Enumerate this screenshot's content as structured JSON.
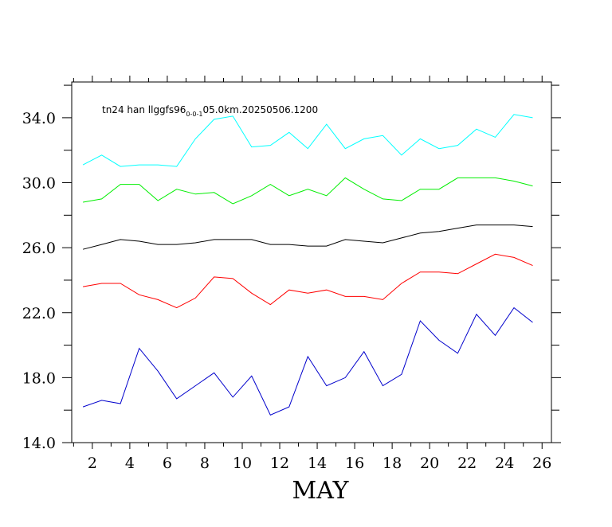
{
  "chart_data": {
    "type": "line",
    "title": "tn24 han llggfs96",
    "title_subscript": "0-0-1",
    "title_suffix": "05.0km.20250506.1200",
    "xlabel": "MAY",
    "ylabel": "",
    "xlim": [
      0.9,
      26.5
    ],
    "ylim": [
      14.0,
      36.2
    ],
    "xticks_major": [
      2,
      4,
      6,
      8,
      10,
      12,
      14,
      16,
      18,
      20,
      22,
      24,
      26
    ],
    "xtick_labels": [
      "2",
      "4",
      "6",
      "8",
      "10",
      "12",
      "14",
      "16",
      "18",
      "20",
      "22",
      "24",
      "26"
    ],
    "yticks_major": [
      14.0,
      18.0,
      22.0,
      26.0,
      30.0,
      34.0
    ],
    "ytick_labels": [
      "14.0",
      "18.0",
      "22.0",
      "26.0",
      "30.0",
      "34.0"
    ],
    "yticks_minor": [
      16.0,
      20.0,
      24.0,
      28.0,
      32.0,
      36.0
    ],
    "grid": false,
    "x": [
      1.5,
      2.5,
      3.5,
      4.5,
      5.5,
      6.5,
      7.5,
      8.5,
      9.5,
      10.5,
      11.5,
      12.5,
      13.5,
      14.5,
      15.5,
      16.5,
      17.5,
      18.5,
      19.5,
      20.5,
      21.5,
      22.5,
      23.5,
      24.5,
      25.5
    ],
    "series": [
      {
        "color": "#00ffff",
        "values": [
          31.1,
          31.7,
          31.0,
          31.1,
          31.1,
          31.0,
          32.7,
          33.9,
          34.1,
          32.2,
          32.3,
          33.1,
          32.1,
          33.6,
          32.1,
          32.7,
          32.9,
          31.7,
          32.7,
          32.1,
          32.3,
          33.3,
          32.8,
          34.2,
          34.0
        ]
      },
      {
        "color": "#00ee00",
        "values": [
          28.8,
          29.0,
          29.9,
          29.9,
          28.9,
          29.6,
          29.3,
          29.4,
          28.7,
          29.2,
          29.9,
          29.2,
          29.6,
          29.2,
          30.3,
          29.6,
          29.0,
          28.9,
          29.6,
          29.6,
          30.3,
          30.3,
          30.3,
          30.1,
          29.8
        ]
      },
      {
        "color": "#000000",
        "values": [
          25.9,
          26.2,
          26.5,
          26.4,
          26.2,
          26.2,
          26.3,
          26.5,
          26.5,
          26.5,
          26.2,
          26.2,
          26.1,
          26.1,
          26.5,
          26.4,
          26.3,
          26.6,
          26.9,
          27.0,
          27.2,
          27.4,
          27.4,
          27.4,
          27.3
        ]
      },
      {
        "color": "#ff0000",
        "values": [
          23.6,
          23.8,
          23.8,
          23.1,
          22.8,
          22.3,
          22.9,
          24.2,
          24.1,
          23.2,
          22.5,
          23.4,
          23.2,
          23.4,
          23.0,
          23.0,
          22.8,
          23.8,
          24.5,
          24.5,
          24.4,
          25.0,
          25.6,
          25.4,
          24.9
        ]
      },
      {
        "color": "#0000cc",
        "values": [
          16.2,
          16.6,
          16.4,
          19.8,
          18.4,
          16.7,
          17.5,
          18.3,
          16.8,
          18.1,
          15.7,
          16.2,
          19.3,
          17.5,
          18.0,
          19.6,
          17.5,
          18.2,
          21.5,
          20.3,
          19.5,
          21.9,
          20.6,
          22.3,
          21.4
        ]
      }
    ]
  }
}
